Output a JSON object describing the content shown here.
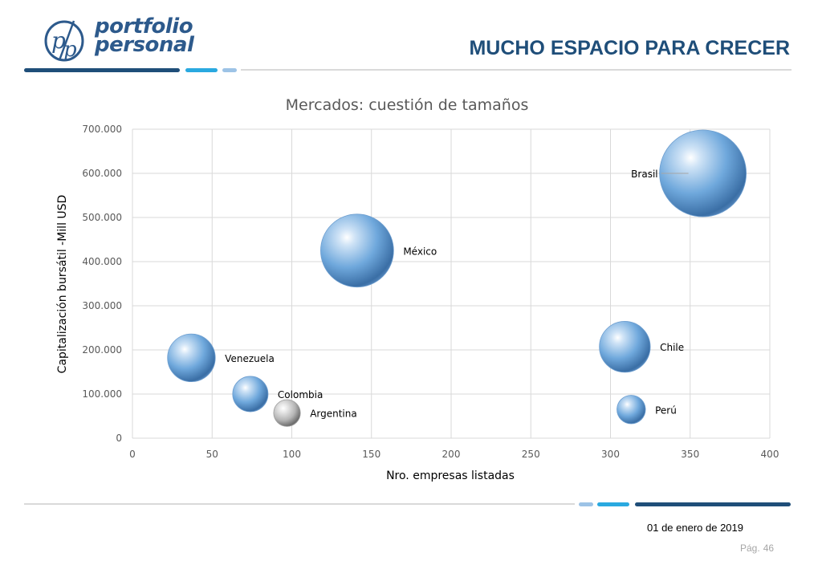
{
  "header": {
    "logo_text_line1": "portfolio",
    "logo_text_line2": "personal",
    "logo_mark": "pp-monogram-icon",
    "title": "MUCHO ESPACIO PARA CRECER"
  },
  "footer": {
    "date": "01 de enero de 2019",
    "page_label": "Pág.",
    "page_number": "46"
  },
  "colors": {
    "brand_dark": "#1f4e79",
    "brand_mid": "#2e75b6",
    "brand_cyan": "#2aa9e0",
    "brand_light": "#9dc3e6",
    "bubble_blue": "#6fa8dc",
    "bubble_gray": "#bfbfbf"
  },
  "chart_data": {
    "type": "bubble",
    "title": "Mercados: cuestión de tamaños",
    "xlabel": "Nro. empresas listadas",
    "ylabel": "Capitalización bursátil -Mill USD",
    "xlim": [
      0,
      400
    ],
    "ylim": [
      0,
      700000
    ],
    "x_ticks": [
      0,
      50,
      100,
      150,
      200,
      250,
      300,
      350,
      400
    ],
    "y_ticks": [
      0,
      100000,
      200000,
      300000,
      400000,
      500000,
      600000,
      700000
    ],
    "y_tick_labels": [
      "0",
      "100.000",
      "200.000",
      "300.000",
      "400.000",
      "500.000",
      "600.000",
      "700.000"
    ],
    "grid": true,
    "legend": "none",
    "points": [
      {
        "label": "Brasil",
        "x": 358,
        "y": 600000,
        "size": 600000,
        "color": "blue"
      },
      {
        "label": "México",
        "x": 141,
        "y": 425000,
        "size": 425000,
        "color": "blue"
      },
      {
        "label": "Venezuela",
        "x": 37,
        "y": 182000,
        "size": 182000,
        "color": "blue"
      },
      {
        "label": "Colombia",
        "x": 74,
        "y": 100000,
        "size": 100000,
        "color": "blue"
      },
      {
        "label": "Argentina",
        "x": 97,
        "y": 57000,
        "size": 57000,
        "color": "gray"
      },
      {
        "label": "Chile",
        "x": 309,
        "y": 207000,
        "size": 207000,
        "color": "blue"
      },
      {
        "label": "Perú",
        "x": 313,
        "y": 65000,
        "size": 65000,
        "color": "blue"
      }
    ]
  }
}
